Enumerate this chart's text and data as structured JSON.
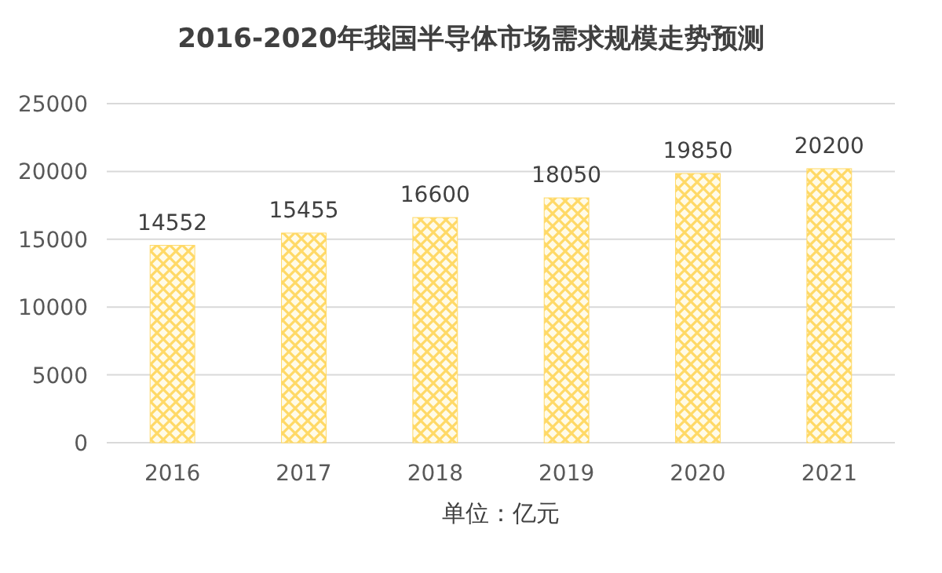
{
  "chart_data": {
    "type": "bar",
    "title": "2016-2020年我国半导体市场需求规模走势预测",
    "xlabel": "单位：亿元",
    "categories": [
      "2016",
      "2017",
      "2018",
      "2019",
      "2020",
      "2021"
    ],
    "values": [
      14552,
      15455,
      16600,
      18050,
      19850,
      20200
    ],
    "color": "#ffd966",
    "ylim": [
      0,
      25000
    ],
    "yticks": [
      0,
      5000,
      10000,
      15000,
      20000,
      25000
    ],
    "grid": "y",
    "data_labels": true
  }
}
